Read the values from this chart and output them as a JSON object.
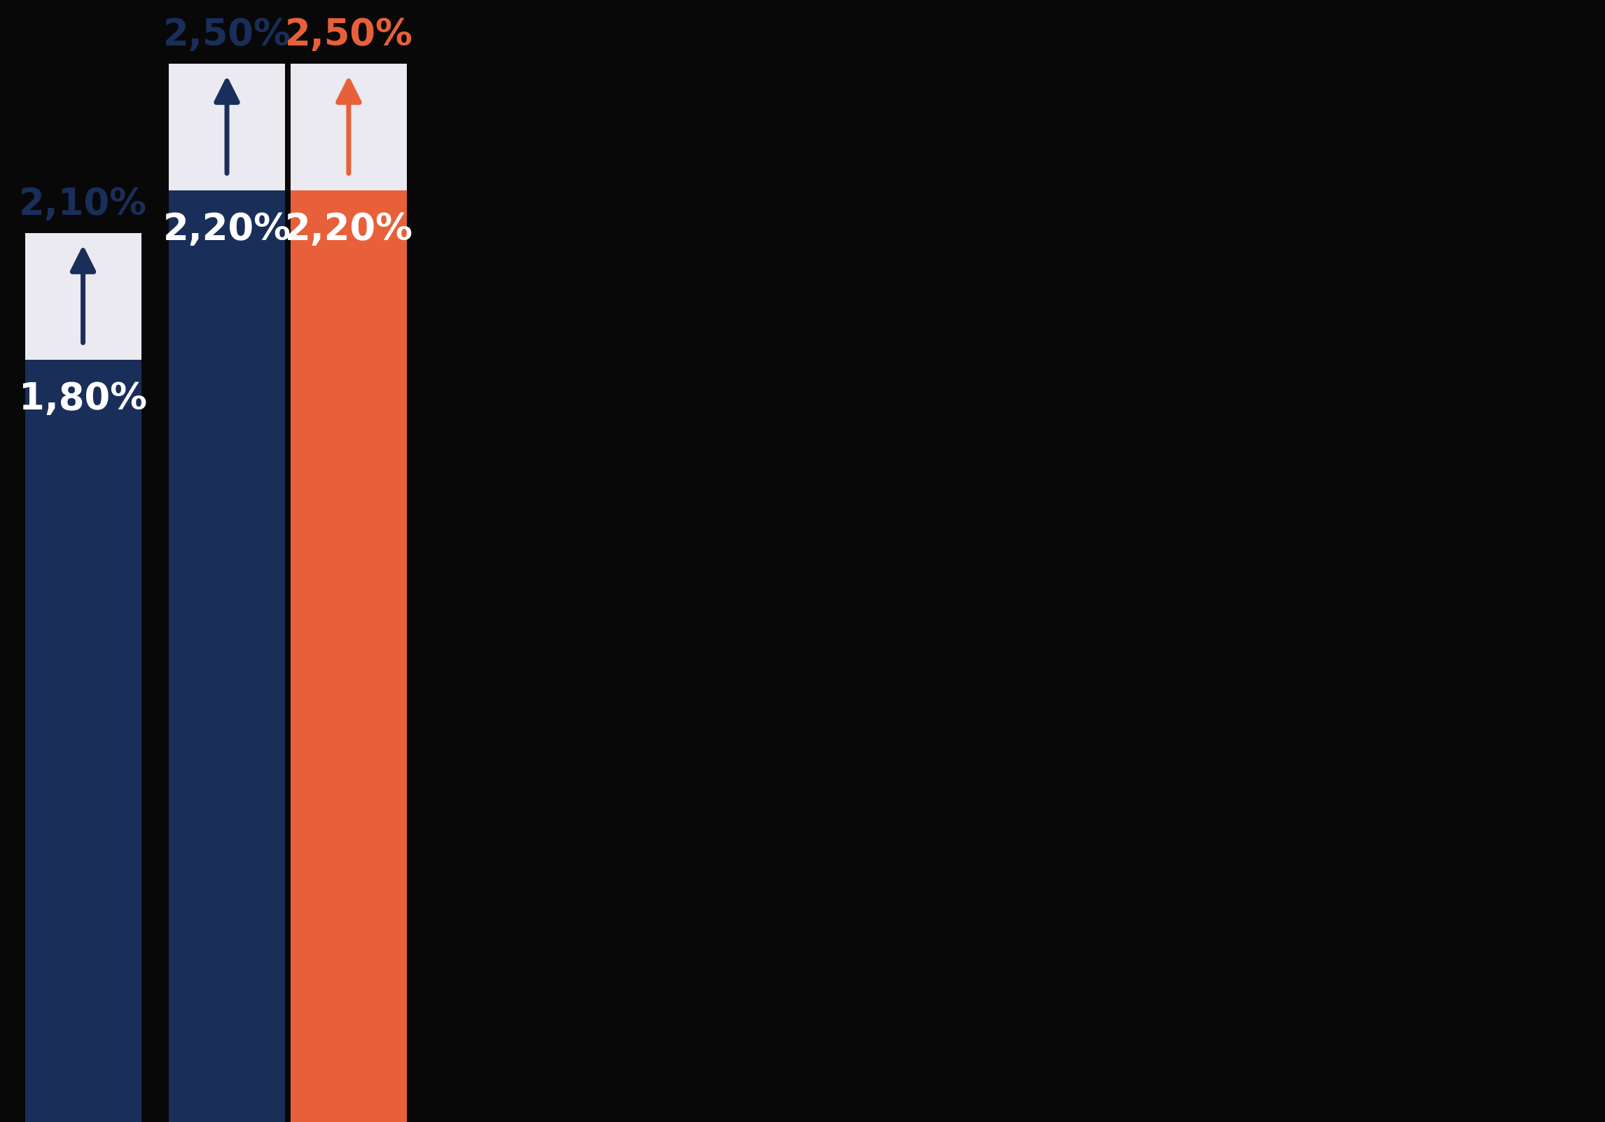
{
  "background_color": "#080808",
  "bar_colors": [
    "#1a2e5a",
    "#1a2e5a",
    "#e8603a"
  ],
  "bar_extension_color": "#eaeaf0",
  "bar_values": [
    1.8,
    2.2,
    2.2
  ],
  "bar_target_values": [
    2.1,
    2.5,
    2.5
  ],
  "bar_labels": [
    "1,80%",
    "2,20%",
    "2,20%"
  ],
  "bar_target_labels": [
    "2,10%",
    "2,50%",
    "2,50%"
  ],
  "target_label_colors": [
    "#1a2e5a",
    "#1a2e5a",
    "#e8603a"
  ],
  "arrow_colors": [
    "#1a2e5a",
    "#1a2e5a",
    "#e8603a"
  ],
  "bar_width": 0.42,
  "ylim_max": 2.65,
  "figsize": [
    22.92,
    16.03
  ],
  "dpi": 100,
  "positions": [
    0.0,
    0.52,
    0.96
  ]
}
